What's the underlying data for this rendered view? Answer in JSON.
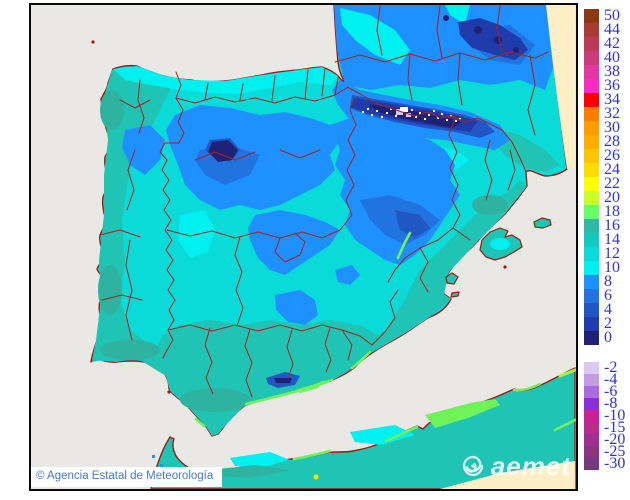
{
  "attribution": {
    "text": "© Agencia Estatal de Meteorología"
  },
  "watermark": {
    "text": "aemet",
    "icon": "aemet-swirl-icon"
  },
  "colorbar": {
    "unit": "temperature",
    "upper": [
      {
        "label": "50",
        "color": "#8B3A0F"
      },
      {
        "label": "44",
        "color": "#A83B33"
      },
      {
        "label": "42",
        "color": "#BB3A58"
      },
      {
        "label": "40",
        "color": "#CC3A7B"
      },
      {
        "label": "38",
        "color": "#E1399F"
      },
      {
        "label": "36",
        "color": "#F92BC2"
      },
      {
        "label": "34",
        "color": "#FB0007"
      },
      {
        "label": "32",
        "color": "#FF7C00"
      },
      {
        "label": "30",
        "color": "#FF9C00"
      },
      {
        "label": "28",
        "color": "#FFAE00"
      },
      {
        "label": "26",
        "color": "#FFC400"
      },
      {
        "label": "24",
        "color": "#FFDC00"
      },
      {
        "label": "22",
        "color": "#FFFF00"
      },
      {
        "label": "20",
        "color": "#C8FF28"
      },
      {
        "label": "18",
        "color": "#66FF66"
      },
      {
        "label": "16",
        "color": "#2DB9A7"
      },
      {
        "label": "14",
        "color": "#13C9C0"
      },
      {
        "label": "12",
        "color": "#0BDBD8"
      },
      {
        "label": "10",
        "color": "#00F0F0"
      },
      {
        "label": "8",
        "color": "#1E90FF"
      },
      {
        "label": "6",
        "color": "#2173E0"
      },
      {
        "label": "4",
        "color": "#2057C4"
      },
      {
        "label": "2",
        "color": "#203CAC"
      },
      {
        "label": "0",
        "color": "#1F2177"
      }
    ],
    "lower": [
      {
        "label": "-2",
        "color": "#DCC9F2"
      },
      {
        "label": "-4",
        "color": "#C39BEA"
      },
      {
        "label": "-6",
        "color": "#AA6BE0"
      },
      {
        "label": "-8",
        "color": "#8A2FE0"
      },
      {
        "label": "-10",
        "color": "#CE1F93"
      },
      {
        "label": "-15",
        "color": "#B72B92"
      },
      {
        "label": "-20",
        "color": "#A03090"
      },
      {
        "label": "-25",
        "color": "#8A3487"
      },
      {
        "label": "-30",
        "color": "#763880"
      }
    ]
  },
  "palette": {
    "sea": "#E9E8E5",
    "cream": "#FCEFC6",
    "coast": "#9E1B12",
    "border": "#A8221A",
    "land12": "#0BDBD8",
    "teal14": "#1FC4B4",
    "teal16": "#2EB3A1",
    "cyan10": "#00EFEF",
    "blue8": "#1E90FF",
    "blue6": "#2173E0",
    "blue4": "#2057C4",
    "blue2": "#203CAC",
    "navy0": "#1F2177",
    "green18": "#70F25B",
    "green20": "#A8F63E",
    "yellow": "#F2E300",
    "snow": "#FFFFFF",
    "lavender": "#D9C8F2",
    "labelblue": "#3232CD",
    "attrblue": "#4678C8",
    "frame": "#0A0A0A"
  }
}
